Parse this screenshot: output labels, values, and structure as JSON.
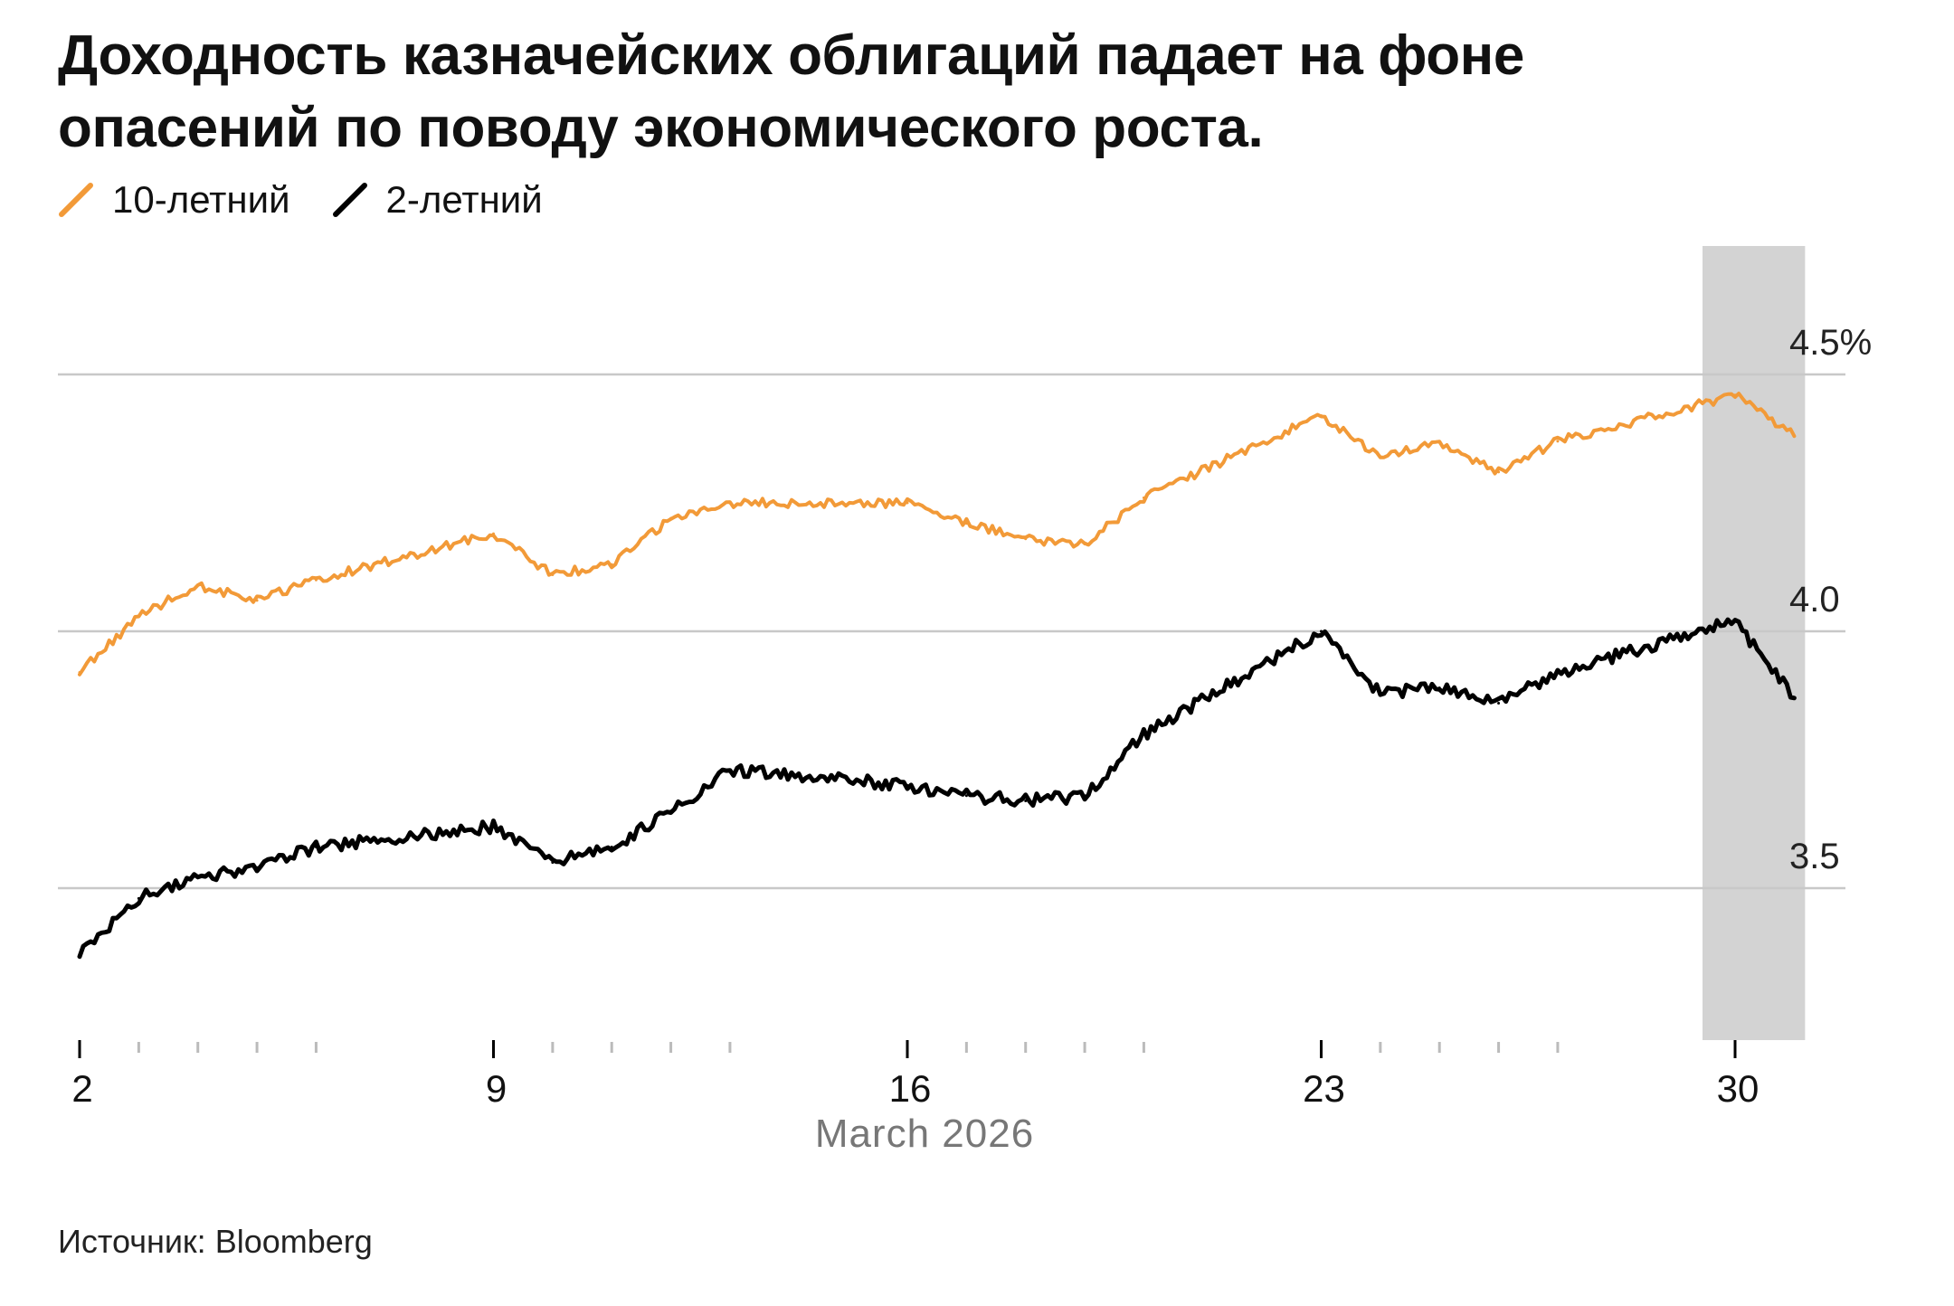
{
  "title": {
    "line1": "Доходность казначейских облигаций падает на фоне",
    "line2": "опасений по поводу экономического роста."
  },
  "legend": [
    {
      "label": "10-летний",
      "color": "#F29A38"
    },
    {
      "label": "2-летний",
      "color": "#000000"
    }
  ],
  "source": "Источник: Bloomberg",
  "chart_data": {
    "type": "line",
    "xlabel": "March 2026",
    "x_range": [
      "2026-03-02",
      "2026-03-31"
    ],
    "x_ticks": [
      {
        "date": "2026-03-02",
        "label": "2"
      },
      {
        "date": "2026-03-09",
        "label": "9"
      },
      {
        "date": "2026-03-16",
        "label": "16"
      },
      {
        "date": "2026-03-23",
        "label": "23"
      },
      {
        "date": "2026-03-30",
        "label": "30"
      }
    ],
    "x_minor_ticks": [
      "2026-03-03",
      "2026-03-04",
      "2026-03-05",
      "2026-03-06",
      "2026-03-10",
      "2026-03-11",
      "2026-03-12",
      "2026-03-13",
      "2026-03-17",
      "2026-03-18",
      "2026-03-19",
      "2026-03-20",
      "2026-03-24",
      "2026-03-25",
      "2026-03-26",
      "2026-03-27"
    ],
    "y_axis": {
      "min": 3.2,
      "max": 4.75,
      "position": "right",
      "unit": "%"
    },
    "y_ticks": [
      {
        "value": 3.5,
        "label": "3.5"
      },
      {
        "value": 4.0,
        "label": "4.0"
      },
      {
        "value": 4.5,
        "label": "4.5%"
      }
    ],
    "grid": true,
    "legend_position": "top-left",
    "highlight_period": {
      "start": "2026-03-30",
      "end": "2026-03-31",
      "color": "#D3D3D3"
    },
    "series": [
      {
        "name": "10-летний",
        "color": "#F29A38",
        "points": [
          [
            "2026-03-02",
            3.92
          ],
          [
            "2026-03-03",
            4.03
          ],
          [
            "2026-03-04",
            4.09
          ],
          [
            "2026-03-05",
            4.06
          ],
          [
            "2026-03-06",
            4.1
          ],
          [
            "2026-03-09",
            4.19
          ],
          [
            "2026-03-10",
            4.11
          ],
          [
            "2026-03-11",
            4.13
          ],
          [
            "2026-03-12",
            4.22
          ],
          [
            "2026-03-13",
            4.25
          ],
          [
            "2026-03-16",
            4.25
          ],
          [
            "2026-03-17",
            4.21
          ],
          [
            "2026-03-18",
            4.18
          ],
          [
            "2026-03-19",
            4.17
          ],
          [
            "2026-03-20",
            4.26
          ],
          [
            "2026-03-23",
            4.42
          ],
          [
            "2026-03-24",
            4.34
          ],
          [
            "2026-03-25",
            4.37
          ],
          [
            "2026-03-26",
            4.31
          ],
          [
            "2026-03-27",
            4.37
          ],
          [
            "2026-03-30",
            4.46
          ],
          [
            "2026-03-31",
            4.38
          ]
        ]
      },
      {
        "name": "2-летний",
        "color": "#000000",
        "points": [
          [
            "2026-03-02",
            3.37
          ],
          [
            "2026-03-03",
            3.48
          ],
          [
            "2026-03-04",
            3.52
          ],
          [
            "2026-03-05",
            3.54
          ],
          [
            "2026-03-06",
            3.58
          ],
          [
            "2026-03-09",
            3.62
          ],
          [
            "2026-03-10",
            3.55
          ],
          [
            "2026-03-11",
            3.58
          ],
          [
            "2026-03-12",
            3.65
          ],
          [
            "2026-03-13",
            3.73
          ],
          [
            "2026-03-16",
            3.7
          ],
          [
            "2026-03-17",
            3.68
          ],
          [
            "2026-03-18",
            3.67
          ],
          [
            "2026-03-19",
            3.68
          ],
          [
            "2026-03-20",
            3.8
          ],
          [
            "2026-03-23",
            4.0
          ],
          [
            "2026-03-24",
            3.88
          ],
          [
            "2026-03-25",
            3.89
          ],
          [
            "2026-03-26",
            3.86
          ],
          [
            "2026-03-27",
            3.92
          ],
          [
            "2026-03-30",
            4.02
          ],
          [
            "2026-03-31",
            3.87
          ]
        ]
      }
    ]
  }
}
